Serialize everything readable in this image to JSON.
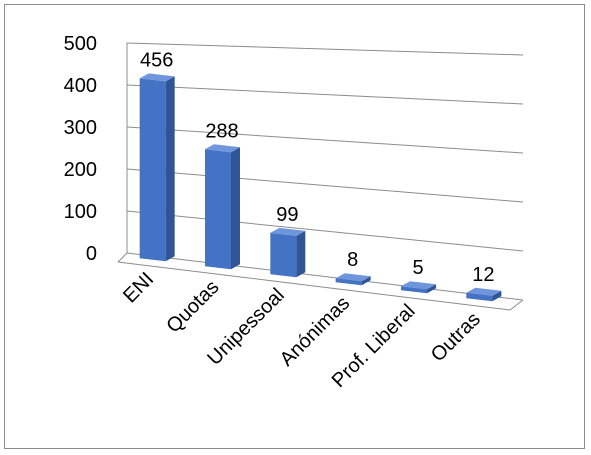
{
  "chart_data": {
    "type": "bar",
    "title": "",
    "xlabel": "",
    "ylabel": "",
    "ylim": [
      0,
      500
    ],
    "yticks": [
      0,
      100,
      200,
      300,
      400,
      500
    ],
    "categories": [
      "ENI",
      "Quotas",
      "Unipessoal",
      "Anónimas",
      "Prof. Liberal",
      "Outras"
    ],
    "values": [
      456,
      288,
      99,
      8,
      5,
      12
    ],
    "data_labels": [
      "456",
      "288",
      "99",
      "8",
      "5",
      "12"
    ],
    "grid": true,
    "legend": "none",
    "style": "3d-column",
    "colors": {
      "bar_front": "#4472c4",
      "bar_side": "#2f5597",
      "bar_top": "#6f96dd",
      "grid": "#8c8c8c"
    }
  }
}
